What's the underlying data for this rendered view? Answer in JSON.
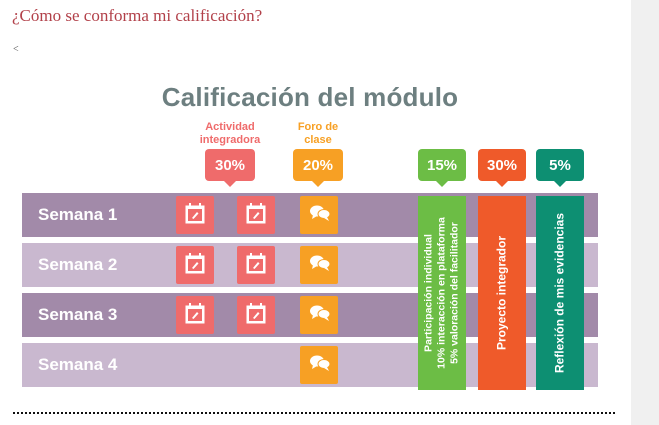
{
  "page": {
    "heading": "¿Cómo se conforma mi calificación?",
    "back_link": "<"
  },
  "infographic": {
    "title": "Calificación del módulo",
    "columns": {
      "actividad": {
        "label_line1": "Actividad",
        "label_line2": "integradora",
        "percent": "30%",
        "color": "#ef6b6b"
      },
      "foro": {
        "label_line1": "Foro de",
        "label_line2": "clase",
        "percent": "20%",
        "color": "#f7a024"
      },
      "participacion": {
        "percent": "15%",
        "color": "#6cbd45",
        "text_line1": "Participación individual",
        "text_line2": "10% interacción en plataforma",
        "text_line3": "5% valoración del facilitador"
      },
      "proyecto": {
        "percent": "30%",
        "color": "#ef5a2a",
        "text": "Proyecto integrador"
      },
      "reflexion": {
        "percent": "5%",
        "color": "#0d8f72",
        "text": "Reflexión de mis evidencias"
      }
    },
    "rows": [
      {
        "label": "Semana 1",
        "actividad_icons": 2,
        "foro_icons": 1
      },
      {
        "label": "Semana 2",
        "actividad_icons": 2,
        "foro_icons": 1
      },
      {
        "label": "Semana 3",
        "actividad_icons": 2,
        "foro_icons": 1
      },
      {
        "label": "Semana 4",
        "actividad_icons": 0,
        "foro_icons": 1
      }
    ],
    "row_colors": {
      "dark": "#a28aa9",
      "light": "#c9b8cf"
    },
    "title_color": "#6d7f80",
    "icons": {
      "actividad": "calendar-pencil-icon",
      "foro": "chat-bubbles-icon"
    }
  }
}
